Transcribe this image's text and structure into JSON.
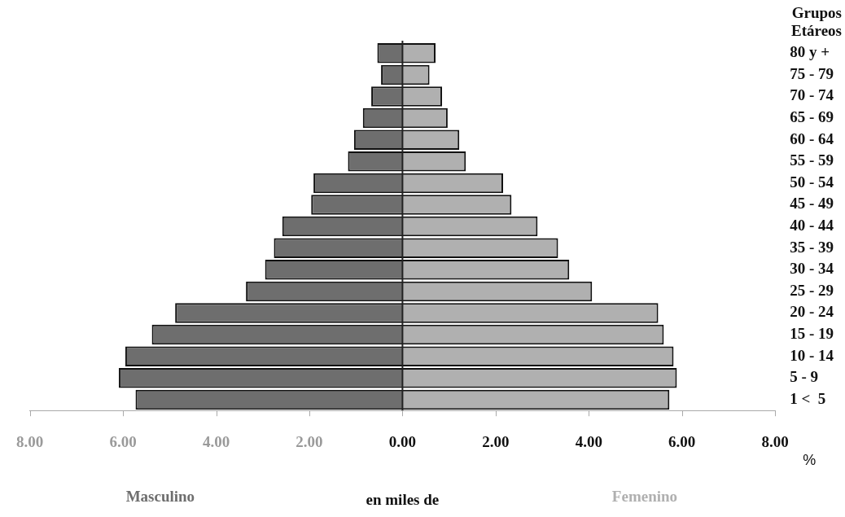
{
  "chart_data": {
    "type": "bar",
    "orientation": "horizontal",
    "stacked": true,
    "ylabel": "Grupos Etáreos",
    "xlabel": "en miles de",
    "annotations": [
      "%"
    ],
    "categories": [
      "80 y +",
      "75 - 79",
      "70 - 74",
      "65 - 69",
      "60 - 64",
      "55 - 59",
      "50 - 54",
      "45 - 49",
      "40 - 44",
      "35 - 39",
      "30 - 34",
      "25 - 29",
      "20 - 24",
      "15 - 19",
      "10 - 14",
      "5 - 9",
      "1 <  5"
    ],
    "series": [
      {
        "name": "Masculino",
        "color": "#6e6e6e",
        "values": [
          -0.54,
          -0.46,
          -0.67,
          -0.85,
          -1.04,
          -1.17,
          -1.91,
          -1.96,
          -2.58,
          -2.76,
          -2.95,
          -3.36,
          -4.88,
          -5.38,
          -5.95,
          -6.09,
          -5.73
        ]
      },
      {
        "name": "Femenino",
        "color": "#b0b0b0",
        "values": [
          0.71,
          0.58,
          0.85,
          0.97,
          1.22,
          1.36,
          2.16,
          2.34,
          2.9,
          3.34,
          3.58,
          4.07,
          5.49,
          5.61,
          5.82,
          5.89,
          5.73
        ]
      }
    ],
    "xlim": [
      -8,
      8
    ],
    "xticks": [
      {
        "value": -8,
        "label": "8.00"
      },
      {
        "value": -6,
        "label": "6.00"
      },
      {
        "value": -4,
        "label": "4.00"
      },
      {
        "value": -2,
        "label": "2.00"
      },
      {
        "value": 0,
        "label": "0.00"
      },
      {
        "value": 2,
        "label": "2.00"
      },
      {
        "value": 4,
        "label": "4.00"
      },
      {
        "value": 6,
        "label": "6.00"
      },
      {
        "value": 8,
        "label": "8.00"
      }
    ],
    "ref_lines": [
      {
        "axis": "x",
        "value": 0,
        "color": "#222222"
      }
    ],
    "grid": false,
    "legend": false
  }
}
